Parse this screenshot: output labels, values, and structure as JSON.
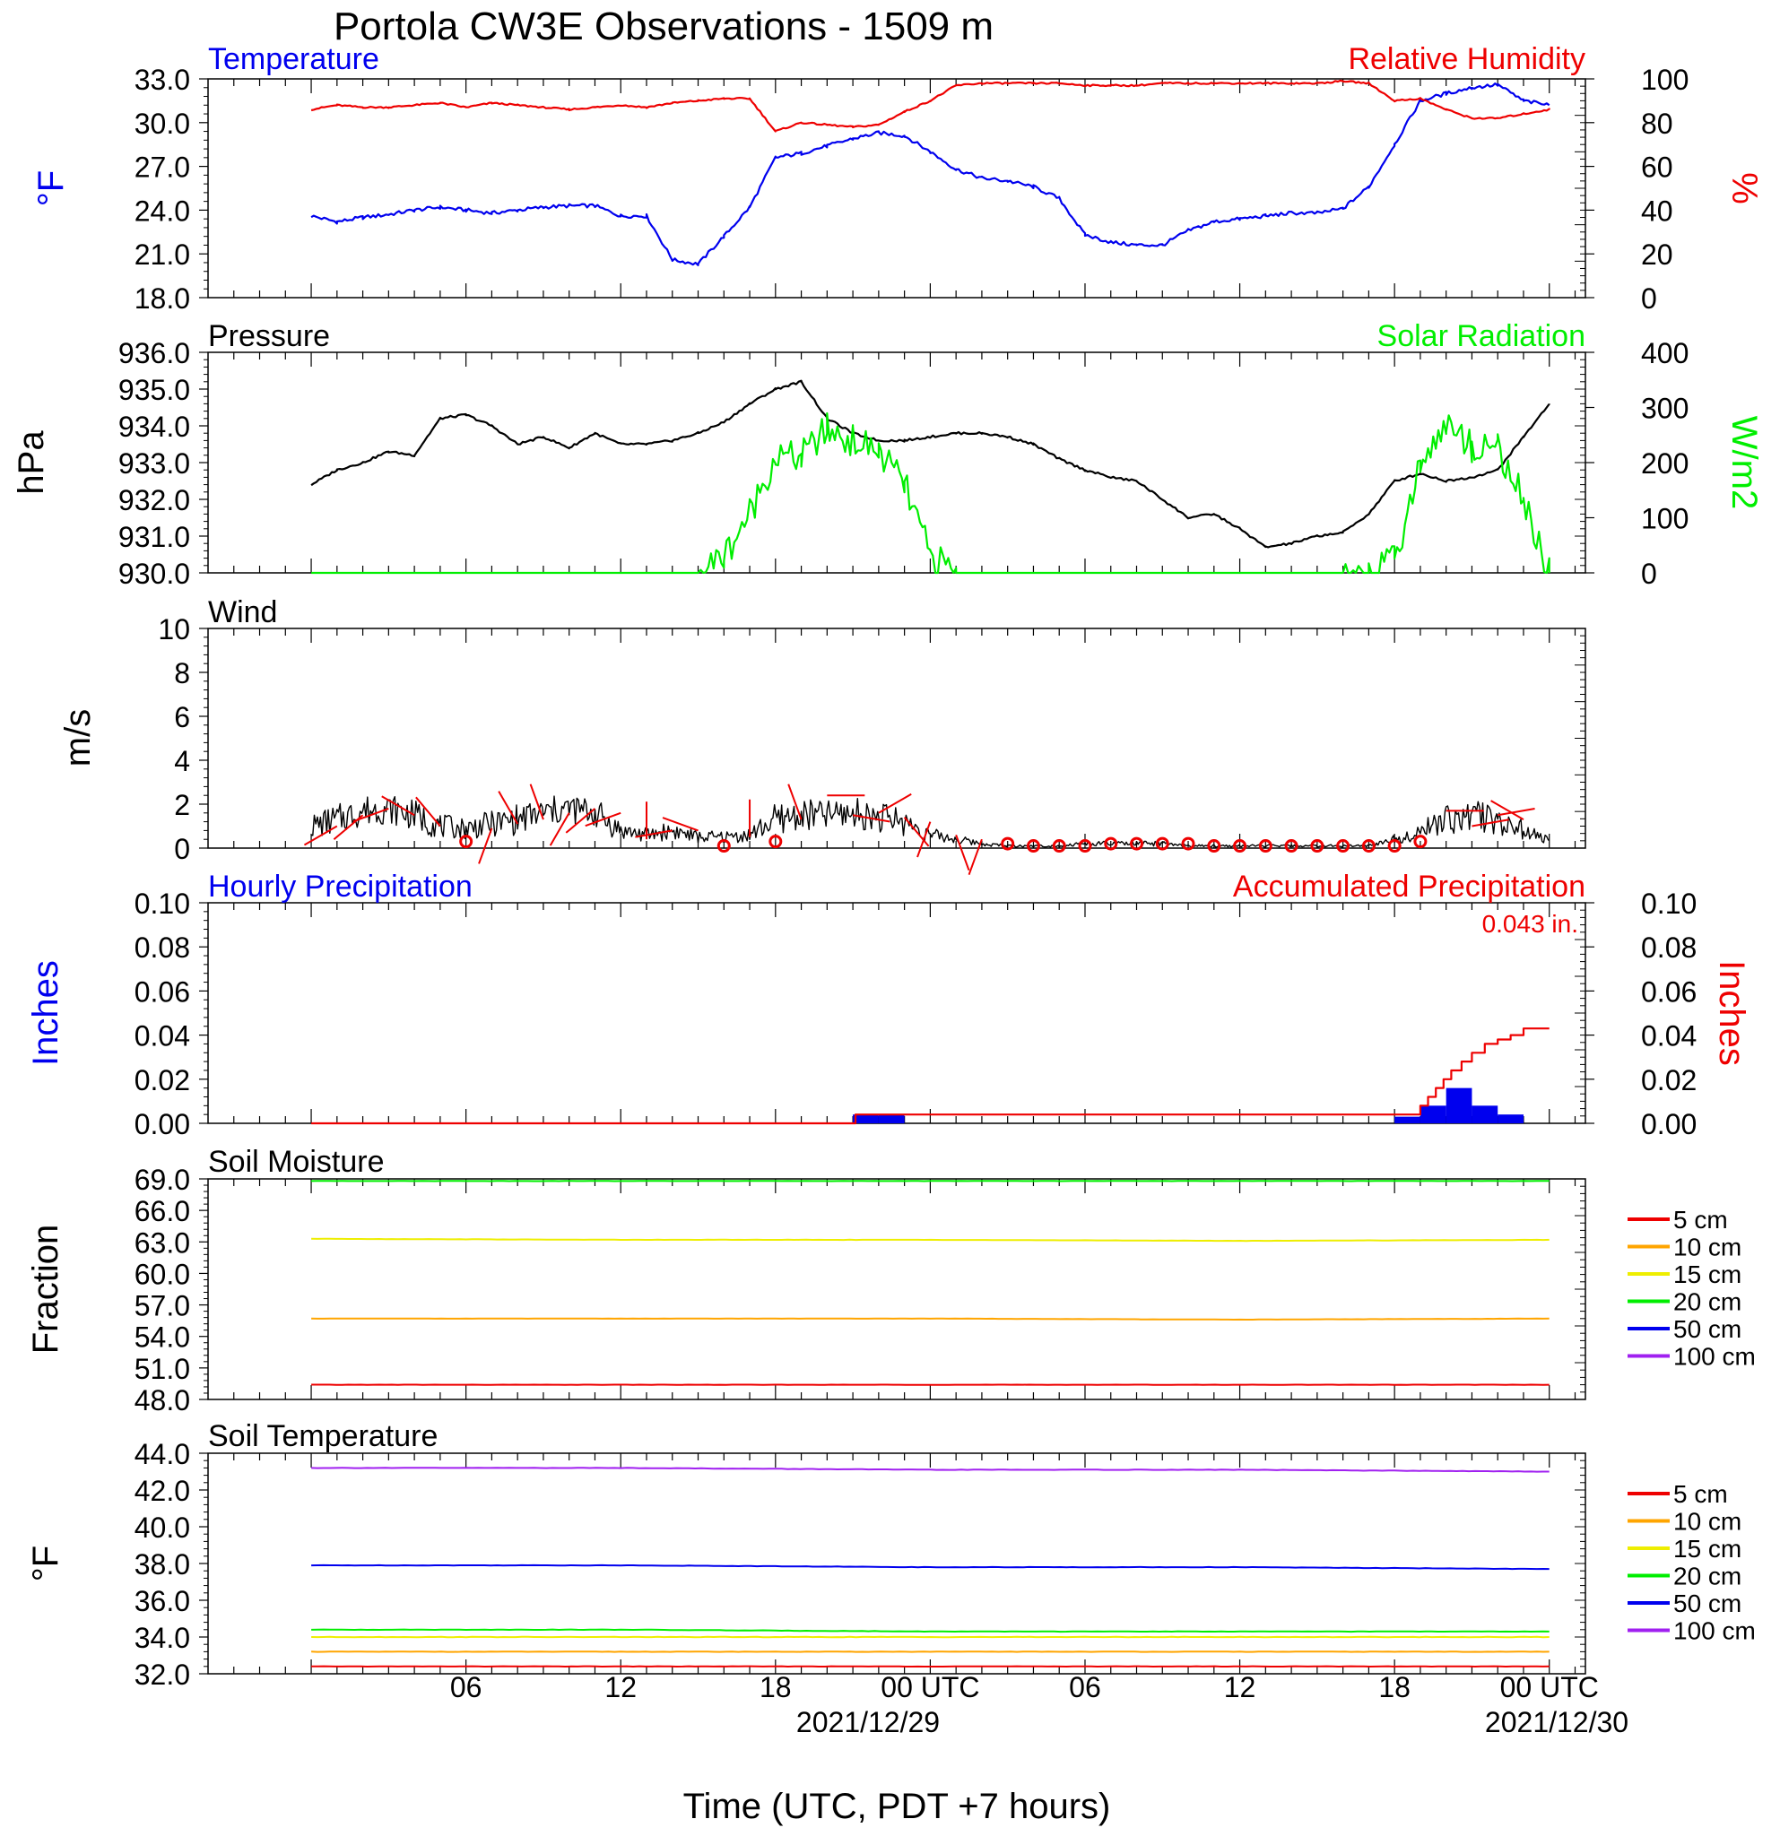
{
  "title": "Portola CW3E Observations - 1509 m",
  "x_axis": {
    "label": "Time (UTC, PDT +7 hours)",
    "tick_labels": [
      "06",
      "12",
      "18",
      "00 UTC",
      "06",
      "12",
      "18",
      "00 UTC"
    ],
    "date_labels": [
      "2021/12/29",
      "2021/12/30"
    ]
  },
  "colors": {
    "blue": "#0000ee",
    "red": "#ee0000",
    "green": "#00ee00",
    "black": "#000000"
  },
  "chart_data": [
    {
      "id": "temperature-humidity",
      "type": "line",
      "title_left": "Temperature",
      "title_right": "Relative Humidity",
      "ylabel_left": "°F",
      "ylabel_right": "%",
      "ylim_left": [
        18,
        33
      ],
      "ylim_right": [
        0,
        100
      ],
      "yticks_left": [
        "33.0",
        "30.0",
        "27.0",
        "24.0",
        "21.0",
        "18.0"
      ],
      "yticks_right": [
        "100",
        "80",
        "60",
        "40",
        "20",
        "0"
      ],
      "x_hours": [
        0,
        1,
        2,
        3,
        4,
        5,
        6,
        7,
        8,
        9,
        10,
        11,
        12,
        13,
        14,
        15,
        16,
        17,
        18,
        19,
        20,
        21,
        22,
        23,
        24,
        25,
        26,
        27,
        28,
        29,
        30,
        31,
        32,
        33,
        34,
        35,
        36,
        37,
        38,
        39,
        40,
        41,
        42,
        43,
        44,
        45,
        46,
        47,
        48
      ],
      "series": [
        {
          "name": "Temperature",
          "color": "#0000ee",
          "axis": "left",
          "values": [
            23.6,
            23.2,
            23.5,
            23.7,
            24.0,
            24.2,
            24.0,
            23.8,
            24.0,
            24.2,
            24.3,
            24.3,
            23.6,
            23.6,
            20.6,
            20.3,
            22.2,
            24.2,
            27.6,
            27.9,
            28.4,
            28.9,
            29.3,
            29.1,
            28.0,
            26.8,
            26.2,
            26.0,
            25.6,
            24.8,
            22.3,
            21.8,
            21.6,
            21.6,
            22.6,
            23.2,
            23.4,
            23.6,
            23.8,
            23.8,
            24.1,
            25.6,
            28.5,
            31.5,
            32.0,
            32.4,
            32.6,
            31.5,
            31.2
          ]
        },
        {
          "name": "Relative Humidity",
          "color": "#ee0000",
          "axis": "right",
          "values": [
            86,
            88,
            87,
            87,
            88,
            89,
            87,
            89,
            88,
            87,
            86,
            87,
            88,
            87,
            89,
            90,
            91,
            91,
            76,
            80,
            79,
            78,
            79,
            85,
            90,
            97,
            98,
            98,
            98,
            98,
            97,
            97,
            97,
            98,
            98,
            98,
            98,
            98,
            98,
            98,
            99,
            98,
            90,
            91,
            86,
            82,
            82,
            84,
            86
          ]
        }
      ]
    },
    {
      "id": "pressure-solar",
      "type": "line",
      "title_left": "Pressure",
      "title_right": "Solar Radiation",
      "ylabel_left": "hPa",
      "ylabel_right": "W/m2",
      "ylim_left": [
        930,
        936
      ],
      "ylim_right": [
        0,
        400
      ],
      "yticks_left": [
        "936.0",
        "935.0",
        "934.0",
        "933.0",
        "932.0",
        "931.0",
        "930.0"
      ],
      "yticks_right": [
        "400",
        "300",
        "200",
        "100",
        "0"
      ],
      "x_hours": [
        0,
        1,
        2,
        3,
        4,
        5,
        6,
        7,
        8,
        9,
        10,
        11,
        12,
        13,
        14,
        15,
        16,
        17,
        18,
        19,
        20,
        21,
        22,
        23,
        24,
        25,
        26,
        27,
        28,
        29,
        30,
        31,
        32,
        33,
        34,
        35,
        36,
        37,
        38,
        39,
        40,
        41,
        42,
        43,
        44,
        45,
        46,
        47,
        48
      ],
      "series": [
        {
          "name": "Pressure",
          "color": "#000000",
          "axis": "left",
          "values": [
            932.4,
            932.8,
            933.0,
            933.3,
            933.2,
            934.2,
            934.3,
            934.0,
            933.5,
            933.7,
            933.4,
            933.8,
            933.5,
            933.5,
            933.6,
            933.8,
            934.1,
            934.6,
            935.0,
            935.2,
            934.2,
            933.8,
            933.6,
            933.6,
            933.7,
            933.8,
            933.8,
            933.7,
            933.5,
            933.1,
            932.8,
            932.6,
            932.5,
            932.0,
            931.5,
            931.6,
            931.2,
            930.7,
            930.8,
            931.0,
            931.1,
            931.6,
            932.5,
            932.7,
            932.5,
            932.6,
            932.8,
            933.7,
            934.6
          ]
        },
        {
          "name": "Solar Radiation",
          "color": "#00ee00",
          "axis": "right",
          "values": [
            0,
            0,
            0,
            0,
            0,
            0,
            0,
            0,
            0,
            0,
            0,
            0,
            0,
            0,
            0,
            0,
            30,
            110,
            210,
            210,
            260,
            240,
            220,
            160,
            30,
            0,
            0,
            0,
            0,
            0,
            0,
            0,
            0,
            0,
            0,
            0,
            0,
            0,
            0,
            0,
            0,
            5,
            20,
            200,
            270,
            230,
            230,
            130,
            0
          ]
        }
      ]
    },
    {
      "id": "wind",
      "type": "line",
      "title_left": "Wind",
      "ylabel_left": "m/s",
      "ylim_left": [
        0,
        10
      ],
      "yticks_left": [
        "10",
        "8",
        "6",
        "4",
        "2",
        "0"
      ],
      "x_hours": [
        0,
        1,
        2,
        3,
        4,
        5,
        6,
        7,
        8,
        9,
        10,
        11,
        12,
        13,
        14,
        15,
        16,
        17,
        18,
        19,
        20,
        21,
        22,
        23,
        24,
        25,
        26,
        27,
        28,
        29,
        30,
        31,
        32,
        33,
        34,
        35,
        36,
        37,
        38,
        39,
        40,
        41,
        42,
        43,
        44,
        45,
        46,
        47,
        48
      ],
      "series": [
        {
          "name": "Wind",
          "color": "#000000",
          "axis": "left",
          "values": [
            1.0,
            1.3,
            1.7,
            1.8,
            1.5,
            1.0,
            0.9,
            1.1,
            1.3,
            1.6,
            1.8,
            1.6,
            0.8,
            0.6,
            0.8,
            0.5,
            0.5,
            0.6,
            1.3,
            1.5,
            1.5,
            1.6,
            1.4,
            1.2,
            0.6,
            0.4,
            0.2,
            0.1,
            0.1,
            0.1,
            0.2,
            0.2,
            0.2,
            0.2,
            0.1,
            0.1,
            0.1,
            0.1,
            0.1,
            0.1,
            0.1,
            0.1,
            0.4,
            0.8,
            1.3,
            1.5,
            1.3,
            0.8,
            0.3
          ]
        }
      ],
      "barbs_hours": [
        1,
        2,
        3,
        4,
        5,
        6,
        7,
        8,
        9,
        10,
        11,
        12,
        13,
        14,
        15,
        16,
        17,
        18,
        19,
        20,
        21,
        22,
        23,
        24,
        25,
        26,
        27,
        28,
        29,
        30,
        31,
        32,
        33,
        34,
        35,
        36,
        37,
        38,
        39,
        40,
        41,
        42,
        43,
        44,
        45,
        46,
        47
      ],
      "barbs_speed": [
        1.0,
        1.5,
        1.8,
        1.5,
        1.0,
        0.3,
        0.9,
        1.1,
        1.3,
        1.6,
        1.8,
        1.6,
        0.4,
        0.8,
        0.8,
        0.1,
        0.5,
        0.3,
        1.3,
        2.4,
        1.5,
        1.6,
        1.4,
        1.2,
        0.6,
        0.4,
        0.2,
        0.1,
        0.1,
        0.1,
        0.2,
        0.2,
        0.2,
        0.2,
        0.1,
        0.1,
        0.1,
        0.1,
        0.1,
        0.1,
        0.1,
        0.1,
        0.3,
        1.7,
        1.0,
        1.5,
        1.3
      ],
      "barbs_direction": [
        240,
        230,
        250,
        300,
        320,
        0,
        200,
        330,
        340,
        210,
        230,
        250,
        0,
        260,
        290,
        0,
        0,
        0,
        340,
        90,
        100,
        60,
        140,
        200,
        160,
        200,
        0,
        0,
        0,
        0,
        0,
        0,
        0,
        0,
        0,
        0,
        0,
        0,
        0,
        0,
        0,
        0,
        0,
        90,
        80,
        80,
        300
      ]
    },
    {
      "id": "precipitation",
      "type": "bar",
      "title_left": "Hourly Precipitation",
      "title_right": "Accumulated Precipitation",
      "total_label": "0.043 in.",
      "ylabel_left": "Inches",
      "ylabel_right": "Inches",
      "ylim_left": [
        0,
        0.1
      ],
      "ylim_right": [
        0,
        0.1
      ],
      "yticks_left": [
        "0.10",
        "0.08",
        "0.06",
        "0.04",
        "0.02",
        "0.00"
      ],
      "yticks_right": [
        "0.10",
        "0.08",
        "0.06",
        "0.04",
        "0.02",
        "0.00"
      ],
      "bars_hour_start": [
        21,
        22,
        42,
        43,
        44,
        45,
        46
      ],
      "bars_values": [
        0.004,
        0.004,
        0.003,
        0.008,
        0.016,
        0.008,
        0.004
      ],
      "accum_x": [
        0,
        21.1,
        21.1,
        42.0,
        43.0,
        43.3,
        43.6,
        43.9,
        44.2,
        44.6,
        45.0,
        45.5,
        46.0,
        46.5,
        47.0,
        48.0
      ],
      "accum_values": [
        0,
        0,
        0.004,
        0.004,
        0.008,
        0.012,
        0.016,
        0.02,
        0.024,
        0.028,
        0.032,
        0.036,
        0.038,
        0.04,
        0.043,
        0.043
      ]
    },
    {
      "id": "soil-moisture",
      "type": "line",
      "title_left": "Soil Moisture",
      "ylabel_left": "Fraction",
      "ylim_left": [
        48,
        69
      ],
      "yticks_left": [
        "69.0",
        "66.0",
        "63.0",
        "60.0",
        "57.0",
        "54.0",
        "51.0",
        "48.0"
      ],
      "x_hours": [
        0,
        12,
        24,
        36,
        48
      ],
      "series": [
        {
          "name": "5 cm",
          "color": "#ee0000",
          "values": [
            49.4,
            49.4,
            49.4,
            49.4,
            49.4
          ]
        },
        {
          "name": "10 cm",
          "color": "#ffa500",
          "values": [
            55.7,
            55.7,
            55.7,
            55.6,
            55.7
          ]
        },
        {
          "name": "15 cm",
          "color": "#eeee00",
          "values": [
            63.3,
            63.2,
            63.2,
            63.1,
            63.2
          ]
        },
        {
          "name": "20 cm",
          "color": "#00ee00",
          "values": [
            68.8,
            68.8,
            68.8,
            68.8,
            68.8
          ]
        },
        {
          "name": "50 cm",
          "color": "#0000ee",
          "values": []
        },
        {
          "name": "100 cm",
          "color": "#a020f0",
          "values": []
        }
      ]
    },
    {
      "id": "soil-temperature",
      "type": "line",
      "title_left": "Soil Temperature",
      "ylabel_left": "°F",
      "ylim_left": [
        32,
        44
      ],
      "yticks_left": [
        "44.0",
        "42.0",
        "40.0",
        "38.0",
        "36.0",
        "34.0",
        "32.0"
      ],
      "x_hours": [
        0,
        12,
        24,
        36,
        48
      ],
      "series": [
        {
          "name": "5 cm",
          "color": "#ee0000",
          "values": [
            32.4,
            32.4,
            32.4,
            32.4,
            32.4
          ]
        },
        {
          "name": "10 cm",
          "color": "#ffa500",
          "values": [
            33.2,
            33.2,
            33.2,
            33.2,
            33.2
          ]
        },
        {
          "name": "15 cm",
          "color": "#eeee00",
          "values": [
            34.0,
            34.0,
            34.0,
            34.0,
            34.0
          ]
        },
        {
          "name": "20 cm",
          "color": "#00ee00",
          "values": [
            34.4,
            34.4,
            34.3,
            34.3,
            34.3
          ]
        },
        {
          "name": "50 cm",
          "color": "#0000ee",
          "values": [
            37.9,
            37.9,
            37.8,
            37.8,
            37.7
          ]
        },
        {
          "name": "100 cm",
          "color": "#a020f0",
          "values": [
            43.2,
            43.2,
            43.1,
            43.1,
            43.0
          ]
        }
      ]
    }
  ]
}
